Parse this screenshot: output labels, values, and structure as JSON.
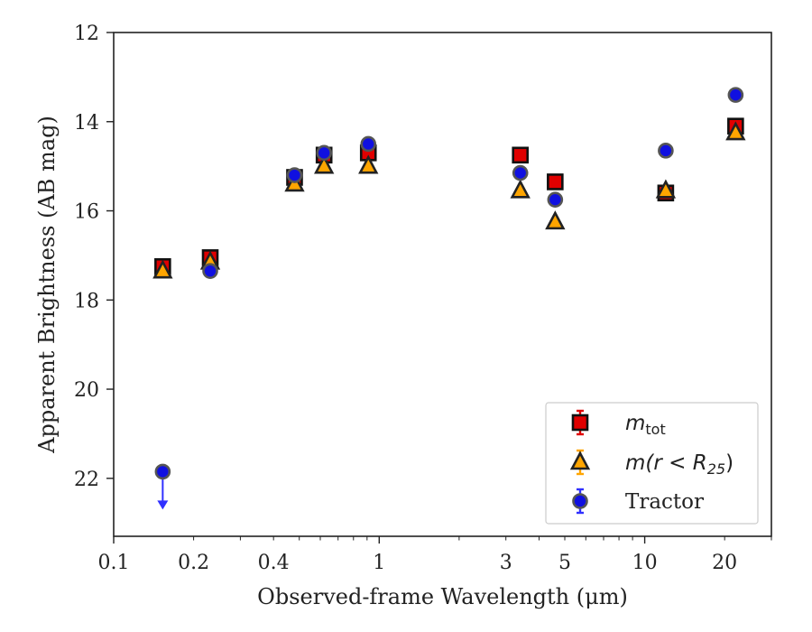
{
  "chart_data": {
    "type": "scatter",
    "xscale": "log",
    "xlim": [
      0.1,
      30
    ],
    "ylim": [
      12,
      23.3
    ],
    "y_inverted": true,
    "xlabel": "Observed-frame Wavelength (μm)",
    "ylabel": "Apparent Brightness (AB mag)",
    "x_ticks": [
      0.1,
      0.2,
      0.4,
      1,
      3,
      5,
      10,
      20
    ],
    "x_tick_labels": [
      "0.1",
      "0.2",
      "0.4",
      "1",
      "3",
      "5",
      "10",
      "20"
    ],
    "y_ticks": [
      12,
      14,
      16,
      18,
      20,
      22
    ],
    "y_tick_labels": [
      "12",
      "14",
      "16",
      "18",
      "20",
      "22"
    ],
    "legend_position": "lower-right",
    "series": [
      {
        "name": "m_tot",
        "label_main": "m",
        "label_sub": "tot",
        "marker": "square",
        "color": "#e00000",
        "error_color": "#e00000",
        "points": [
          {
            "x": 0.153,
            "y": 17.25
          },
          {
            "x": 0.231,
            "y": 17.05
          },
          {
            "x": 0.48,
            "y": 15.25
          },
          {
            "x": 0.62,
            "y": 14.75
          },
          {
            "x": 0.91,
            "y": 14.7
          },
          {
            "x": 3.4,
            "y": 14.75
          },
          {
            "x": 4.6,
            "y": 15.35
          },
          {
            "x": 12.0,
            "y": 15.6
          },
          {
            "x": 22.0,
            "y": 14.1
          }
        ]
      },
      {
        "name": "m(r < R25)",
        "label_main": "m(r < R",
        "label_sub": "25",
        "label_end": ")",
        "marker": "triangle",
        "color": "#ffa500",
        "error_color": "#ffa500",
        "points": [
          {
            "x": 0.153,
            "y": 17.35
          },
          {
            "x": 0.231,
            "y": 17.15
          },
          {
            "x": 0.48,
            "y": 15.4
          },
          {
            "x": 0.62,
            "y": 15.0
          },
          {
            "x": 0.91,
            "y": 15.0
          },
          {
            "x": 3.4,
            "y": 15.55
          },
          {
            "x": 4.6,
            "y": 16.25
          },
          {
            "x": 12.0,
            "y": 15.55
          },
          {
            "x": 22.0,
            "y": 14.25
          }
        ]
      },
      {
        "name": "Tractor",
        "label_main": "Tractor",
        "marker": "circle",
        "color": "#1010e0",
        "error_color": "#3030ff",
        "points": [
          {
            "x": 0.153,
            "y": 21.85,
            "upper_limit": true
          },
          {
            "x": 0.231,
            "y": 17.35
          },
          {
            "x": 0.48,
            "y": 15.2
          },
          {
            "x": 0.62,
            "y": 14.7
          },
          {
            "x": 0.91,
            "y": 14.5
          },
          {
            "x": 3.4,
            "y": 15.15
          },
          {
            "x": 4.6,
            "y": 15.75
          },
          {
            "x": 12.0,
            "y": 14.65
          },
          {
            "x": 22.0,
            "y": 13.4
          }
        ]
      }
    ]
  }
}
